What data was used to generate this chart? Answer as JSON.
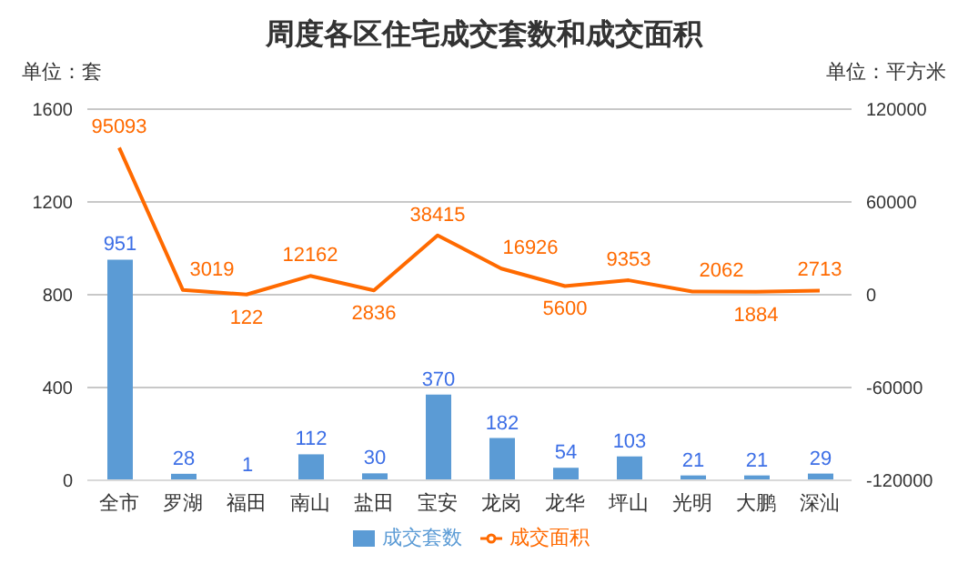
{
  "chart_data": {
    "type": "bar",
    "title": "周度各区住宅成交套数和成交面积",
    "ylabel": "单位：套",
    "y2label": "单位：平方米",
    "categories": [
      "全市",
      "罗湖",
      "福田",
      "南山",
      "盐田",
      "宝安",
      "龙岗",
      "龙华",
      "坪山",
      "光明",
      "大鹏",
      "深汕"
    ],
    "series": [
      {
        "name": "成交套数",
        "color": "#5b9bd5",
        "values": [
          951,
          28,
          1,
          112,
          30,
          370,
          182,
          54,
          103,
          21,
          21,
          29
        ]
      },
      {
        "name": "成交面积",
        "type": "line",
        "axis": "y2",
        "color": "#ff6a00",
        "values": [
          95093,
          3019,
          122,
          12162,
          2836,
          38415,
          16926,
          5600,
          9353,
          2062,
          1884,
          2713
        ]
      }
    ],
    "ylim": [
      0,
      1600
    ],
    "yticks": [
      0,
      400,
      800,
      1200,
      1600
    ],
    "y2lim": [
      -120000,
      120000
    ],
    "y2ticks": [
      -120000,
      -60000,
      0,
      60000,
      120000
    ],
    "grid": "y",
    "legend": "bottom",
    "data_labels": true,
    "marker": "none"
  }
}
